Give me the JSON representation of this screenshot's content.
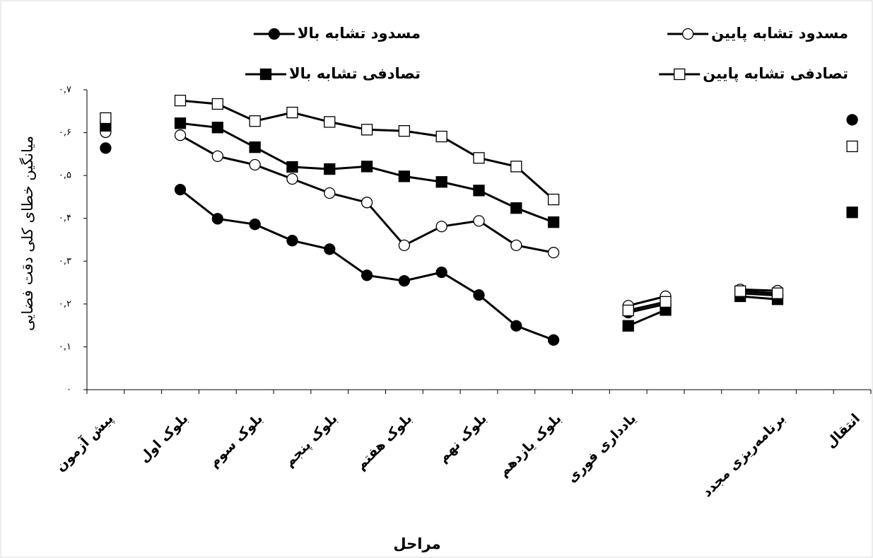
{
  "chart_data": {
    "type": "line",
    "x_label": "مراحل",
    "y_label": "میانگین خطای کلی دقت فضایی",
    "categories": [
      "پیش آزمون",
      null,
      "بلوک اول",
      null,
      "بلوک سوم",
      null,
      "بلوک پنجم",
      null,
      "بلوک هفتم",
      null,
      "بلوک نهم",
      null,
      "بلوک یازدهم",
      null,
      "یادداری فوری",
      null,
      null,
      null,
      "برنامه‌ریزی مجدد",
      null,
      "انتقال"
    ],
    "ylim": [
      0,
      0.7
    ],
    "yticks": [
      {
        "value": 0,
        "label": "۰"
      },
      {
        "value": 0.1,
        "label": "۰,۱"
      },
      {
        "value": 0.2,
        "label": "۰,۲"
      },
      {
        "value": 0.3,
        "label": "۰,۳"
      },
      {
        "value": 0.4,
        "label": "۰,۴"
      },
      {
        "value": 0.5,
        "label": "۰,۵"
      },
      {
        "value": 0.6,
        "label": "۰,۶"
      },
      {
        "value": 0.7,
        "label": "۰,۷"
      }
    ],
    "series": [
      {
        "name": "مسدود تشابه بالا",
        "color": "#000000",
        "marker": "filled-circle",
        "values": [
          0.564,
          null,
          0.467,
          0.399,
          0.386,
          0.348,
          0.328,
          0.267,
          0.254,
          0.274,
          0.221,
          0.149,
          0.116,
          null,
          0.18,
          0.2,
          null,
          0.225,
          0.22,
          null,
          0.63
        ]
      },
      {
        "name": "مسدود تشابه پایین",
        "color": "#000000",
        "marker": "open-circle",
        "values": [
          0.601,
          null,
          0.594,
          0.545,
          0.525,
          0.492,
          0.459,
          0.437,
          0.337,
          0.381,
          0.394,
          0.337,
          0.32,
          null,
          0.196,
          0.218,
          null,
          0.234,
          0.231,
          null,
          null
        ]
      },
      {
        "name": "تصادفی تشابه بالا",
        "color": "#000000",
        "marker": "filled-square",
        "values": [
          0.616,
          null,
          0.622,
          0.612,
          0.566,
          0.52,
          0.515,
          0.521,
          0.498,
          0.485,
          0.465,
          0.424,
          0.391,
          null,
          0.149,
          0.186,
          null,
          0.218,
          0.211,
          null,
          0.414
        ]
      },
      {
        "name": "تصادفی تشابه پایین",
        "color": "#000000",
        "marker": "open-square",
        "values": [
          0.634,
          null,
          0.675,
          0.667,
          0.627,
          0.647,
          0.625,
          0.607,
          0.604,
          0.591,
          0.541,
          0.521,
          0.444,
          null,
          0.185,
          0.205,
          null,
          0.23,
          0.225,
          null,
          0.568
        ]
      }
    ]
  }
}
